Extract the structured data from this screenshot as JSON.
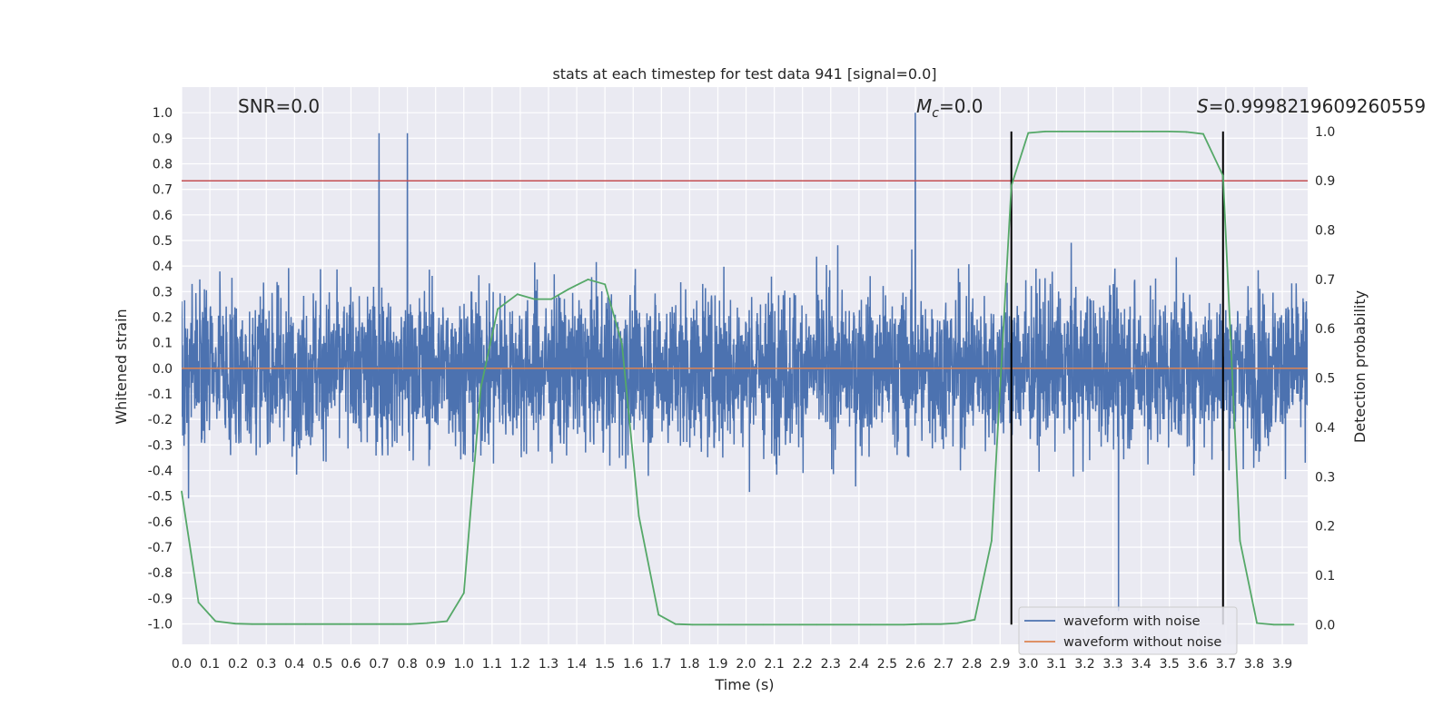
{
  "chart_data": {
    "type": "line",
    "title": "stats at each timestep for test data 941 [signal=0.0]",
    "xlabel": "Time (s)",
    "ylabel_left": "Whitened strain",
    "ylabel_right": "Detection probability",
    "xlim": [
      0.0,
      3.99
    ],
    "ylim_left": [
      -1.08,
      1.1
    ],
    "ylim_right": [
      -0.04,
      1.09
    ],
    "x_ticks": [
      "0.0",
      "0.1",
      "0.2",
      "0.3",
      "0.4",
      "0.5",
      "0.6",
      "0.7",
      "0.8",
      "0.9",
      "1.0",
      "1.1",
      "1.2",
      "1.3",
      "1.4",
      "1.5",
      "1.6",
      "1.7",
      "1.8",
      "1.9",
      "2.0",
      "2.1",
      "2.2",
      "2.3",
      "2.4",
      "2.5",
      "2.6",
      "2.7",
      "2.8",
      "2.9",
      "3.0",
      "3.1",
      "3.2",
      "3.3",
      "3.4",
      "3.5",
      "3.6",
      "3.7",
      "3.8",
      "3.9"
    ],
    "y_ticks_left": [
      "1.0",
      "0.9",
      "0.8",
      "0.7",
      "0.6",
      "0.5",
      "0.4",
      "0.3",
      "0.2",
      "0.1",
      "0.0",
      "-0.1",
      "-0.2",
      "-0.3",
      "-0.4",
      "-0.5",
      "-0.6",
      "-0.7",
      "-0.8",
      "-0.9",
      "-1.0"
    ],
    "y_ticks_right": [
      "1.0",
      "0.9",
      "0.8",
      "0.7",
      "0.6",
      "0.5",
      "0.4",
      "0.3",
      "0.2",
      "0.1",
      "0.0"
    ],
    "annotations": {
      "snr": "SNR=0.0",
      "mc_symbol": "M",
      "mc_sub": "c",
      "mc_value": "=0.0",
      "s_symbol": "S",
      "s_value": "=0.9998219609260559"
    },
    "threshold": {
      "value": 0.9,
      "axis": "right",
      "color": "#c44e52"
    },
    "vertical_markers": [
      2.94,
      3.69
    ],
    "series": [
      {
        "name": "waveform with noise",
        "color": "#4c72b0",
        "axis": "left",
        "kind": "noise",
        "approx_amplitude": 0.45,
        "peaks": [
          [
            0.7,
            0.92
          ],
          [
            0.8,
            0.92
          ],
          [
            2.6,
            1.0
          ],
          [
            3.32,
            -0.95
          ]
        ]
      },
      {
        "name": "waveform without noise",
        "color": "#dd8452",
        "axis": "left",
        "kind": "flat",
        "value": 0.0
      },
      {
        "name": "detection probability",
        "color": "#55a868",
        "axis": "right",
        "x": [
          0.0,
          0.06,
          0.12,
          0.19,
          0.25,
          0.31,
          0.37,
          0.44,
          0.5,
          0.56,
          0.62,
          0.69,
          0.75,
          0.81,
          0.87,
          0.94,
          1.0,
          1.06,
          1.12,
          1.19,
          1.25,
          1.31,
          1.37,
          1.44,
          1.5,
          1.56,
          1.62,
          1.69,
          1.75,
          1.81,
          1.87,
          1.94,
          2.0,
          2.06,
          2.12,
          2.19,
          2.25,
          2.31,
          2.37,
          2.44,
          2.5,
          2.56,
          2.62,
          2.69,
          2.75,
          2.81,
          2.87,
          2.94,
          3.0,
          3.06,
          3.12,
          3.19,
          3.25,
          3.31,
          3.37,
          3.44,
          3.5,
          3.56,
          3.62,
          3.69,
          3.75,
          3.81,
          3.87,
          3.94
        ],
        "values": [
          0.27,
          0.045,
          0.007,
          0.002,
          0.001,
          0.001,
          0.001,
          0.001,
          0.001,
          0.001,
          0.001,
          0.001,
          0.001,
          0.001,
          0.003,
          0.007,
          0.064,
          0.48,
          0.64,
          0.67,
          0.66,
          0.66,
          0.68,
          0.7,
          0.69,
          0.57,
          0.22,
          0.02,
          0.001,
          0.0,
          0.0,
          0.0,
          0.0,
          0.0,
          0.0,
          0.0,
          0.0,
          0.0,
          0.0,
          0.0,
          0.0,
          0.0,
          0.001,
          0.001,
          0.003,
          0.01,
          0.17,
          0.89,
          0.997,
          1.0,
          1.0,
          1.0,
          1.0,
          1.0,
          1.0,
          1.0,
          1.0,
          0.999,
          0.995,
          0.91,
          0.17,
          0.003,
          0.0,
          0.0
        ]
      }
    ],
    "legend": {
      "location": "lower-right",
      "entries": [
        "waveform with noise",
        "waveform without noise"
      ]
    },
    "grid": true
  }
}
